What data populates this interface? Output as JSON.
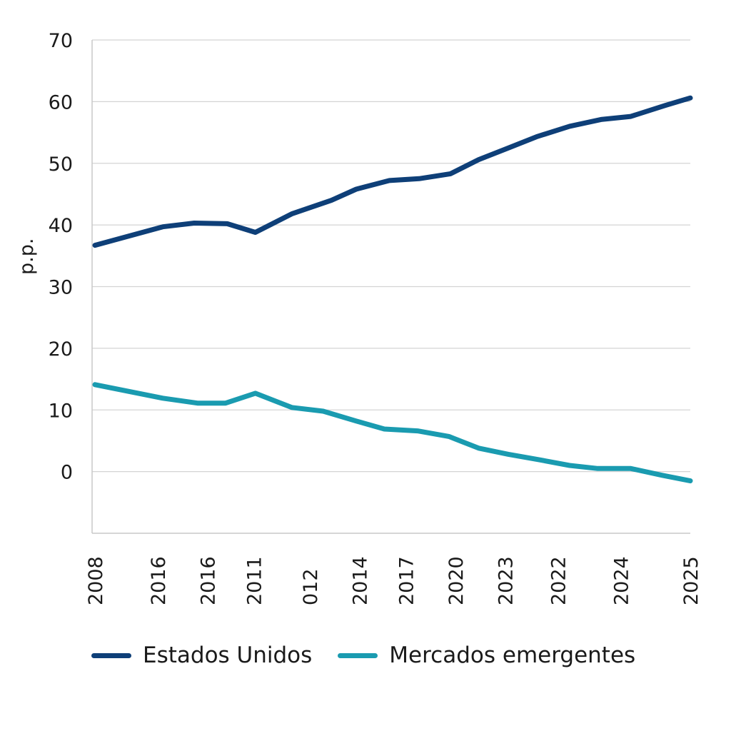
{
  "chart_data": {
    "type": "line",
    "title": "",
    "xlabel": "",
    "ylabel": "p.p.",
    "ylim": [
      -10,
      70
    ],
    "yticks": [
      0,
      10,
      20,
      30,
      40,
      50,
      60,
      70
    ],
    "grid": true,
    "legend_position": "bottom",
    "x_tick_labels": [
      "2008",
      "2016",
      "2016",
      "2011",
      "012",
      "2014",
      "2017",
      "2020",
      "2023",
      "2022",
      "2024",
      "2025"
    ],
    "x_tick_positions": [
      0,
      1.9,
      3.4,
      4.8,
      6.5,
      8.0,
      9.4,
      10.9,
      12.4,
      14.0,
      15.9,
      18.0
    ],
    "x": [
      0,
      1,
      2,
      3,
      4,
      5,
      6,
      7,
      8,
      9,
      10,
      11,
      12,
      13,
      14,
      15,
      16,
      17,
      18
    ],
    "x_range": [
      0,
      18
    ],
    "series": [
      {
        "name": "Estados Unidos",
        "color": "#0e3f78",
        "x": [
          0,
          2.05,
          3.0,
          4.0,
          4.85,
          5.95,
          7.15,
          7.9,
          8.9,
          9.8,
          10.75,
          11.6,
          12.5,
          13.35,
          14.35,
          15.3,
          16.2,
          17.25,
          18.0
        ],
        "values": [
          36.7,
          39.7,
          40.3,
          40.2,
          38.8,
          41.8,
          44.0,
          45.8,
          47.2,
          47.5,
          48.3,
          50.6,
          52.5,
          54.3,
          56.0,
          57.1,
          57.6,
          59.4,
          60.6
        ]
      },
      {
        "name": "Mercados emergentes",
        "color": "#1a9bb0",
        "x": [
          0,
          2.05,
          3.1,
          3.95,
          4.85,
          5.95,
          6.9,
          7.9,
          8.75,
          9.75,
          10.7,
          11.6,
          12.5,
          13.45,
          14.35,
          15.2,
          16.2,
          17.15,
          18.0
        ],
        "values": [
          14.1,
          11.9,
          11.1,
          11.1,
          12.7,
          10.4,
          9.8,
          8.2,
          6.9,
          6.6,
          5.7,
          3.8,
          2.8,
          1.9,
          1.0,
          0.5,
          0.5,
          -0.6,
          -1.5
        ]
      }
    ]
  }
}
